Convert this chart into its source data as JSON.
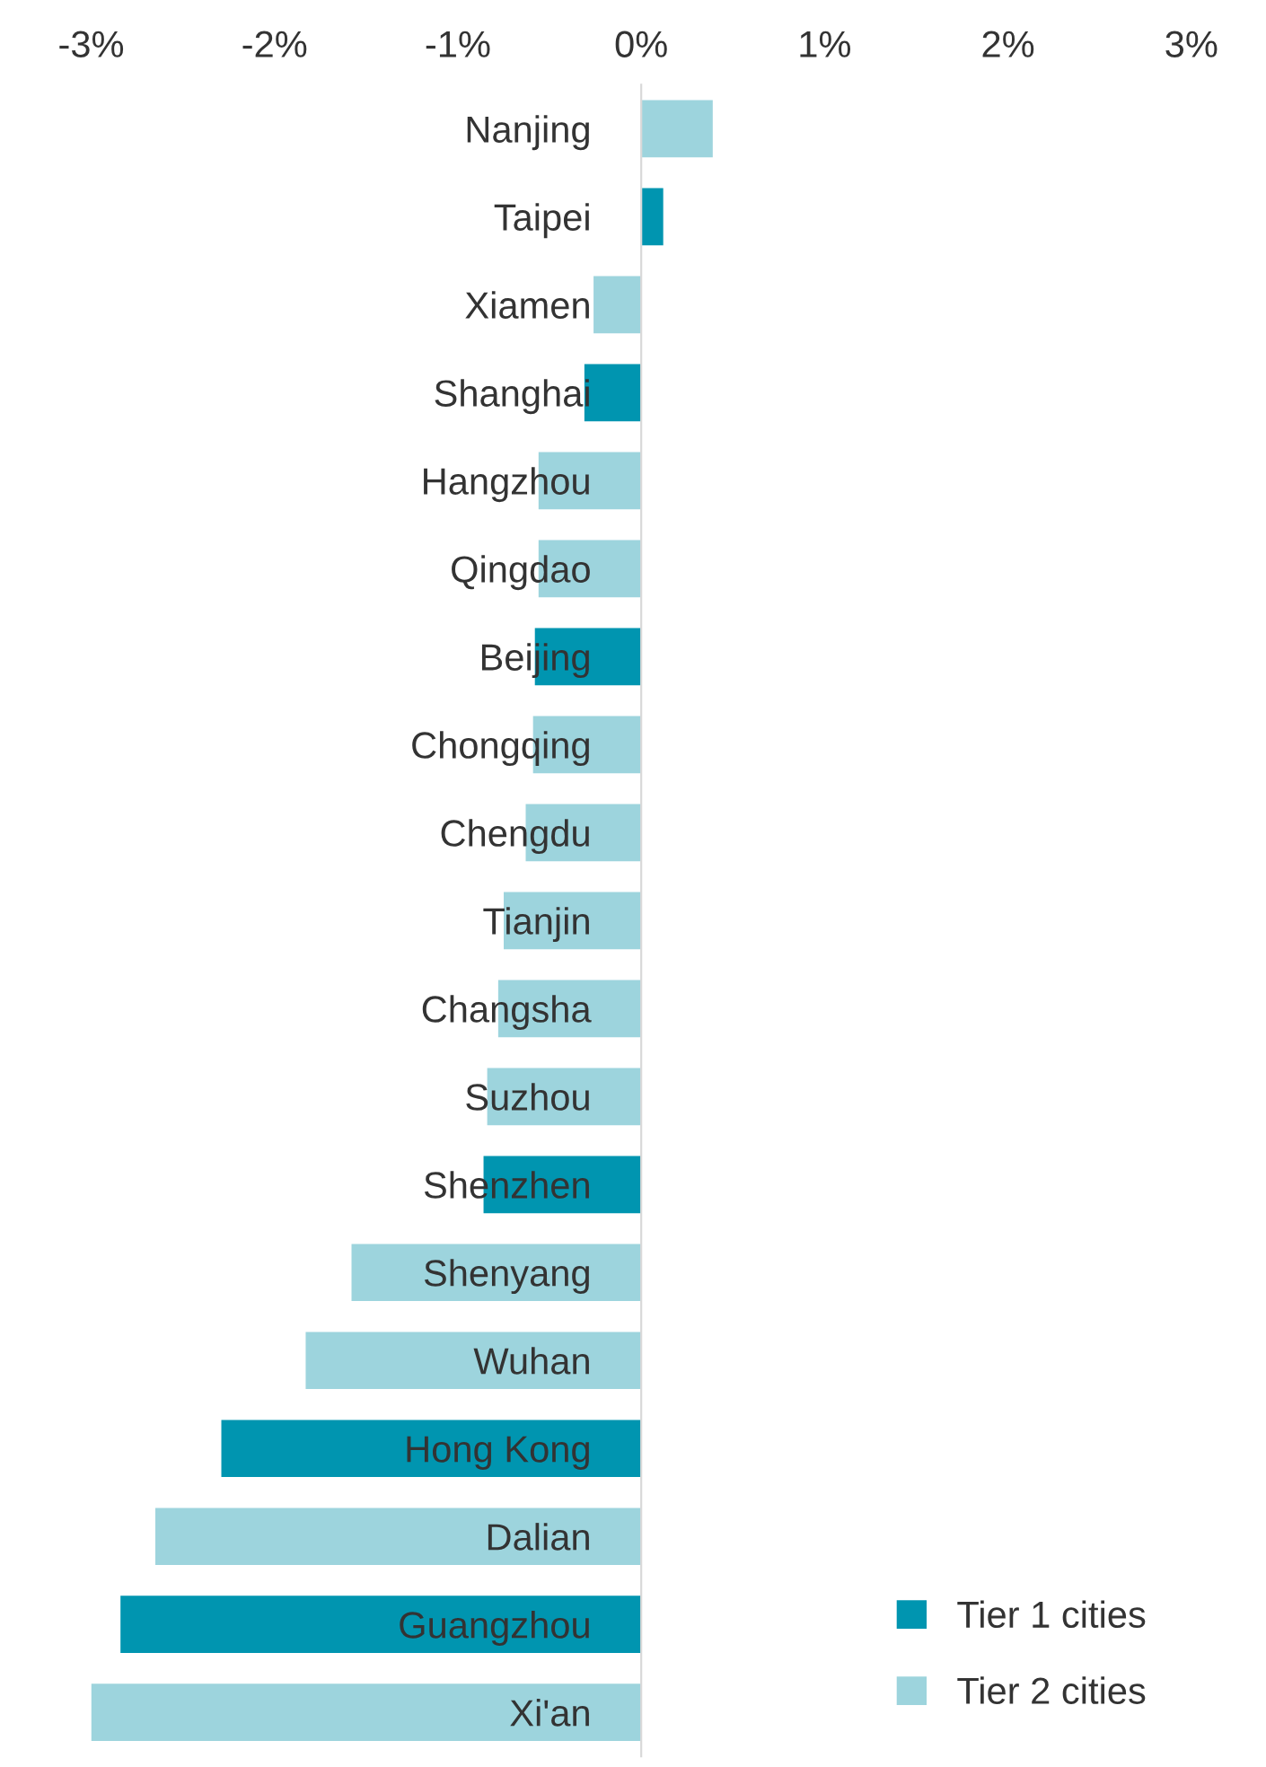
{
  "chart_data": {
    "type": "bar",
    "orientation": "horizontal",
    "categories": [
      "Nanjing",
      "Taipei",
      "Xiamen",
      "Shanghai",
      "Hangzhou",
      "Qingdao",
      "Beijing",
      "Chongqing",
      "Chengdu",
      "Tianjin",
      "Changsha",
      "Suzhou",
      "Shenzhen",
      "Shenyang",
      "Wuhan",
      "Hong Kong",
      "Dalian",
      "Guangzhou",
      "Xi'an"
    ],
    "series": [
      {
        "name": "Tier 1 cities",
        "color": "#0095b0",
        "values": [
          null,
          0.12,
          null,
          -0.31,
          null,
          null,
          -0.58,
          null,
          null,
          null,
          null,
          null,
          -0.86,
          null,
          null,
          -2.29,
          null,
          -2.84,
          null
        ]
      },
      {
        "name": "Tier 2 cities",
        "color": "#9dd4dd",
        "values": [
          0.39,
          null,
          -0.26,
          null,
          -0.56,
          -0.56,
          null,
          -0.59,
          -0.63,
          -0.75,
          -0.78,
          -0.84,
          null,
          -1.58,
          -1.83,
          null,
          -2.65,
          null,
          -3.0
        ]
      }
    ],
    "xlim": [
      -3,
      3
    ],
    "xticks": [
      {
        "value": -3,
        "label": "-3%"
      },
      {
        "value": -2,
        "label": "-2%"
      },
      {
        "value": -1,
        "label": "-1%"
      },
      {
        "value": 0,
        "label": "0%"
      },
      {
        "value": 1,
        "label": "1%"
      },
      {
        "value": 2,
        "label": "2%"
      },
      {
        "value": 3,
        "label": "3%"
      }
    ],
    "grid": false,
    "legend": "bottom right"
  }
}
